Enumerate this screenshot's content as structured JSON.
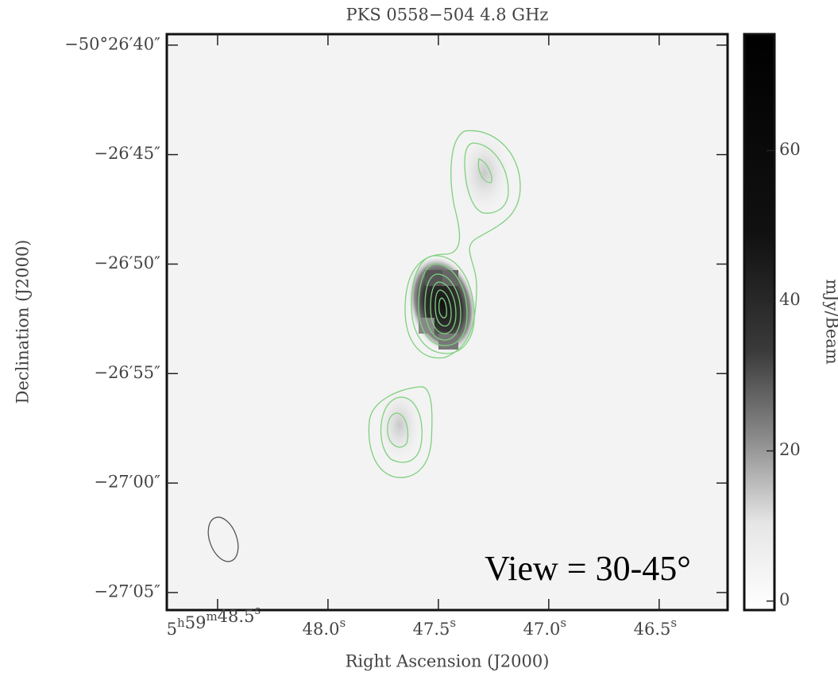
{
  "chart_data": {
    "type": "image",
    "title": "PKS 0558−504   4.8 GHz",
    "xlabel": "Right Ascension (J2000)",
    "ylabel": "Declination (J2000)",
    "xlim": [
      48.73,
      46.19
    ],
    "xticks": [
      {
        "value": 48.5,
        "label": "5h59m48.5s"
      },
      {
        "value": 48.0,
        "label": "48.0s"
      },
      {
        "value": 47.5,
        "label": "47.5s"
      },
      {
        "value": 47.0,
        "label": "47.0s"
      },
      {
        "value": 46.5,
        "label": "46.5s"
      }
    ],
    "ylim": [
      -181625.8,
      -181599.5
    ],
    "yticks": [
      {
        "value": -181600,
        "label": "−50°26′40″"
      },
      {
        "value": -181605,
        "label": "−26′45″"
      },
      {
        "value": -181610,
        "label": "−26′50″"
      },
      {
        "value": -181615,
        "label": "−26′55″"
      },
      {
        "value": -181620,
        "label": "−27′00″"
      },
      {
        "value": -181625,
        "label": "−27′05″"
      }
    ],
    "colorbar": {
      "label": "mJy/Beam",
      "lim": [
        -1.2,
        75.5
      ],
      "ticks": [
        0,
        20,
        40,
        60
      ]
    },
    "annotation": "View = 30-45°"
  }
}
